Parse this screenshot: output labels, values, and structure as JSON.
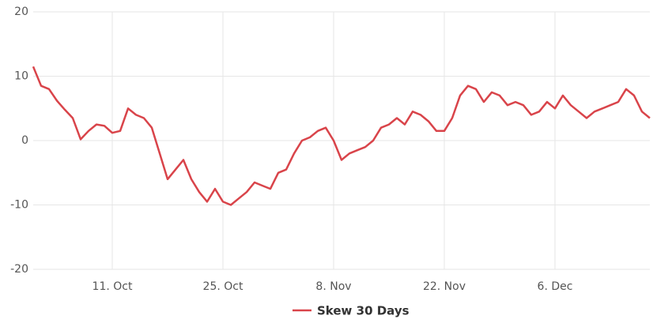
{
  "chart_data": {
    "type": "line",
    "categories": [
      null,
      null,
      null,
      null,
      null,
      null,
      null,
      null,
      null,
      null,
      "11. Oct",
      null,
      null,
      null,
      null,
      null,
      null,
      null,
      null,
      null,
      null,
      null,
      null,
      null,
      "25. Oct",
      null,
      null,
      null,
      null,
      null,
      null,
      null,
      null,
      null,
      null,
      null,
      null,
      null,
      "8. Nov",
      null,
      null,
      null,
      null,
      null,
      null,
      null,
      null,
      null,
      null,
      null,
      null,
      null,
      "22. Nov",
      null,
      null,
      null,
      null,
      null,
      null,
      null,
      null,
      null,
      null,
      null,
      null,
      null,
      "6. Dec",
      null,
      null,
      null,
      null,
      null,
      null,
      null,
      null,
      null,
      null,
      null,
      null
    ],
    "series": [
      {
        "name": "Skew 30 Days",
        "color": "#d9444a",
        "values": [
          11.5,
          8.5,
          8,
          6.2,
          4.8,
          3.5,
          0.2,
          1.5,
          2.5,
          2.3,
          1.2,
          1.5,
          5,
          4,
          3.5,
          2,
          -2,
          -6,
          -4.5,
          -3,
          -6,
          -8,
          -9.5,
          -7.5,
          -9.5,
          -10,
          -9,
          -8,
          -6.5,
          -7,
          -7.5,
          -5,
          -4.5,
          -2,
          0,
          0.5,
          1.5,
          2,
          0,
          -3,
          -2,
          -1.5,
          -1,
          0,
          2,
          2.5,
          3.5,
          2.5,
          4.5,
          4,
          3,
          1.5,
          1.5,
          3.5,
          7,
          8.5,
          8,
          6,
          7.5,
          7,
          5.5,
          6,
          5.5,
          4,
          4.5,
          6,
          5,
          7,
          5.5,
          4.5,
          3.5,
          4.5,
          5,
          5.5,
          6,
          8,
          7,
          4.5,
          3.5
        ]
      }
    ],
    "ylim": [
      -20,
      20
    ],
    "yticks": [
      -20,
      -10,
      0,
      10,
      20
    ],
    "grid": true
  }
}
